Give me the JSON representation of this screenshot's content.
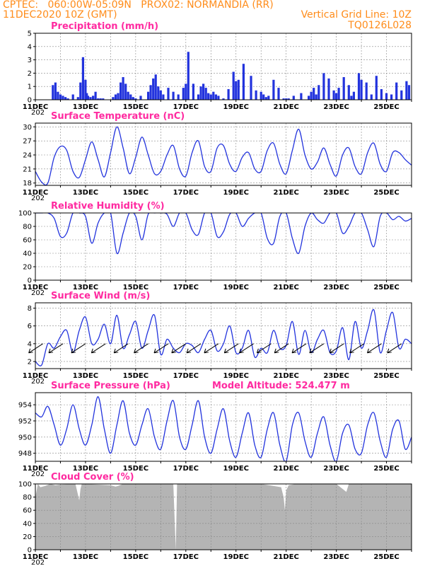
{
  "header": {
    "line1_left": "CPTEC:   060:00W-05:09N   PROX02: NORMANDIA (RR)",
    "line2_left": "11DEC2020 10Z (GMT)",
    "line2_right": "Vertical Grid Line: 10Z",
    "line3_right": "TQ0126L028"
  },
  "colors": {
    "header": "#ff8c1a",
    "title": "#ff2aa0",
    "series": "#2233dd",
    "cloud": "#b4b4b4",
    "grid": "#888888"
  },
  "x_tick_labels": [
    "11DEC",
    "13DEC",
    "15DEC",
    "17DEC",
    "19DEC",
    "21DEC",
    "23DEC",
    "25DEC"
  ],
  "x_tick_sub": "202",
  "chart_data": [
    {
      "id": "precip",
      "type": "bar",
      "title": "Precipitation (mm/h)",
      "ylim": [
        0,
        5
      ],
      "yticks": [
        "0",
        "1",
        "2",
        "3",
        "4",
        "5"
      ],
      "x_days": [
        0,
        15
      ],
      "grid": true,
      "series": [
        {
          "values_note": "",
          "t": [
            0.7,
            0.8,
            0.9,
            1.0,
            1.1,
            1.2,
            1.3,
            1.5,
            1.7,
            1.8,
            1.9,
            2.0,
            2.05,
            2.1,
            2.2,
            2.3,
            2.4,
            2.5,
            2.6,
            2.7,
            3.1,
            3.2,
            3.3,
            3.4,
            3.5,
            3.6,
            3.7,
            3.8,
            3.9,
            4.0,
            4.2,
            4.5,
            4.6,
            4.7,
            4.8,
            4.9,
            5.0,
            5.1,
            5.3,
            5.5,
            5.7,
            5.9,
            6.0,
            6.1,
            6.3,
            6.5,
            6.6,
            6.7,
            6.8,
            6.9,
            7.0,
            7.1,
            7.2,
            7.3,
            7.5,
            7.7,
            7.9,
            8.0,
            8.1,
            8.3,
            8.6,
            8.8,
            9.0,
            9.1,
            9.2,
            9.3,
            9.5,
            9.7,
            9.9,
            10.0,
            10.1,
            10.3,
            10.6,
            10.9,
            11.0,
            11.1,
            11.2,
            11.3,
            11.5,
            11.7,
            11.9,
            12.0,
            12.1,
            12.3,
            12.5,
            12.6,
            12.7,
            12.9,
            13.0,
            13.2,
            13.4,
            13.6,
            13.8,
            14.0,
            14.2,
            14.4,
            14.6,
            14.8,
            14.9
          ],
          "values": [
            1.1,
            1.3,
            0.6,
            0.4,
            0.3,
            0.2,
            0.1,
            0.4,
            0.2,
            1.3,
            3.2,
            1.5,
            0.5,
            0.3,
            0.2,
            0.3,
            0.6,
            0.1,
            0.1,
            0.1,
            0.2,
            0.4,
            0.5,
            1.3,
            1.7,
            1.2,
            0.6,
            0.4,
            0.2,
            0.1,
            0.3,
            0.6,
            1.1,
            1.6,
            1.9,
            1.0,
            0.7,
            0.4,
            0.9,
            0.6,
            0.4,
            0.9,
            1.2,
            3.6,
            1.2,
            0.4,
            1.0,
            1.2,
            0.9,
            0.5,
            0.4,
            0.6,
            0.4,
            0.3,
            0.1,
            0.8,
            2.1,
            1.4,
            1.5,
            2.7,
            1.8,
            0.7,
            0.6,
            0.4,
            0.2,
            0.3,
            1.5,
            0.9,
            0.1,
            0.1,
            0.1,
            0.3,
            0.5,
            0.3,
            0.6,
            0.9,
            0.4,
            1.1,
            2.0,
            1.6,
            0.7,
            0.5,
            0.9,
            1.7,
            1.1,
            0.3,
            0.6,
            2.0,
            1.5,
            1.3,
            0.4,
            1.8,
            0.8,
            0.5,
            0.4,
            1.3,
            0.7,
            1.4,
            1.1
          ]
        }
      ]
    },
    {
      "id": "temp",
      "type": "line",
      "title": "Surface Temperature (nC)",
      "ylim": [
        17.5,
        30.8
      ],
      "yticks": [
        "18",
        "21",
        "24",
        "27",
        "30"
      ],
      "ytick_values": [
        18,
        21,
        24,
        27,
        30
      ],
      "series": [
        {
          "t": [
            0.0,
            0.25,
            0.5,
            0.75,
            1.0,
            1.25,
            1.5,
            1.75,
            2.0,
            2.25,
            2.5,
            2.75,
            3.0,
            3.25,
            3.5,
            3.75,
            4.0,
            4.25,
            4.5,
            4.75,
            5.0,
            5.25,
            5.5,
            5.75,
            6.0,
            6.25,
            6.5,
            6.75,
            7.0,
            7.25,
            7.5,
            7.75,
            8.0,
            8.25,
            8.5,
            8.75,
            9.0,
            9.25,
            9.5,
            9.75,
            10.0,
            10.25,
            10.5,
            10.75,
            11.0,
            11.25,
            11.5,
            11.75,
            12.0,
            12.25,
            12.5,
            12.75,
            13.0,
            13.25,
            13.5,
            13.75,
            14.0,
            14.25,
            14.5,
            14.75,
            15.0
          ],
          "values": [
            20.5,
            18.2,
            18.0,
            23.5,
            25.8,
            25.0,
            20.5,
            19.2,
            23.0,
            26.8,
            23.0,
            19.3,
            24.5,
            30.0,
            25.5,
            20.0,
            23.5,
            27.8,
            24.0,
            20.0,
            20.5,
            24.0,
            26.0,
            21.0,
            19.5,
            24.5,
            27.0,
            21.5,
            20.5,
            25.5,
            26.0,
            22.0,
            20.5,
            23.5,
            24.5,
            21.0,
            20.5,
            25.0,
            26.5,
            22.0,
            20.0,
            25.0,
            29.5,
            24.0,
            21.0,
            22.5,
            25.5,
            22.0,
            19.5,
            24.0,
            25.5,
            21.5,
            20.0,
            24.5,
            26.5,
            22.0,
            20.5,
            24.5,
            24.5,
            23.0,
            21.8
          ]
        }
      ]
    },
    {
      "id": "rh",
      "type": "line",
      "title": "Relative Humidity (%)",
      "ylim": [
        0,
        100
      ],
      "yticks": [
        "0",
        "20",
        "40",
        "60",
        "80",
        "100"
      ],
      "ytick_values": [
        0,
        20,
        40,
        60,
        80,
        100
      ],
      "series": [
        {
          "t": [
            0.0,
            0.25,
            0.5,
            0.75,
            1.0,
            1.25,
            1.5,
            1.75,
            2.0,
            2.25,
            2.5,
            2.75,
            3.0,
            3.25,
            3.5,
            3.75,
            4.0,
            4.25,
            4.5,
            4.75,
            5.0,
            5.25,
            5.5,
            5.75,
            6.0,
            6.25,
            6.5,
            6.75,
            7.0,
            7.25,
            7.5,
            7.75,
            8.0,
            8.25,
            8.5,
            8.75,
            9.0,
            9.25,
            9.5,
            9.75,
            10.0,
            10.25,
            10.5,
            10.75,
            11.0,
            11.25,
            11.5,
            11.75,
            12.0,
            12.25,
            12.5,
            12.75,
            13.0,
            13.25,
            13.5,
            13.75,
            14.0,
            14.25,
            14.5,
            14.75,
            15.0
          ],
          "values": [
            100,
            100,
            100,
            92,
            65,
            70,
            100,
            100,
            95,
            55,
            85,
            100,
            100,
            40,
            70,
            100,
            95,
            60,
            98,
            100,
            100,
            98,
            80,
            100,
            100,
            75,
            68,
            100,
            100,
            65,
            72,
            98,
            100,
            80,
            92,
            100,
            100,
            62,
            55,
            95,
            100,
            62,
            40,
            80,
            100,
            90,
            85,
            100,
            100,
            70,
            80,
            100,
            100,
            75,
            50,
            95,
            100,
            90,
            95,
            88,
            92
          ]
        }
      ]
    },
    {
      "id": "wind",
      "type": "line",
      "title": "Surface Wind (m/s)",
      "ylim": [
        1.2,
        8.6
      ],
      "yticks": [
        "2",
        "4",
        "6",
        "8"
      ],
      "ytick_values": [
        2,
        4,
        6,
        8
      ],
      "series": [
        {
          "t": [
            0.0,
            0.25,
            0.5,
            0.75,
            1.0,
            1.25,
            1.5,
            1.75,
            2.0,
            2.25,
            2.5,
            2.75,
            3.0,
            3.25,
            3.5,
            3.75,
            4.0,
            4.25,
            4.5,
            4.75,
            5.0,
            5.25,
            5.5,
            5.75,
            6.0,
            6.25,
            6.5,
            6.75,
            7.0,
            7.25,
            7.5,
            7.75,
            8.0,
            8.25,
            8.5,
            8.75,
            9.0,
            9.25,
            9.5,
            9.75,
            10.0,
            10.25,
            10.5,
            10.75,
            11.0,
            11.25,
            11.5,
            11.75,
            12.0,
            12.25,
            12.5,
            12.75,
            13.0,
            13.25,
            13.5,
            13.75,
            14.0,
            14.25,
            14.5,
            14.75,
            15.0
          ],
          "values": [
            2.0,
            1.6,
            4.0,
            3.5,
            4.8,
            5.5,
            3.0,
            5.5,
            7.0,
            4.0,
            4.5,
            6.2,
            4.0,
            7.2,
            3.5,
            5.0,
            6.5,
            3.5,
            5.5,
            7.2,
            2.8,
            4.5,
            3.5,
            3.0,
            4.0,
            3.8,
            3.0,
            4.5,
            5.5,
            3.2,
            4.0,
            6.0,
            3.0,
            3.5,
            5.5,
            2.5,
            3.5,
            3.0,
            5.5,
            3.5,
            3.8,
            6.5,
            2.8,
            5.5,
            3.0,
            4.5,
            5.5,
            3.0,
            3.2,
            5.8,
            2.2,
            6.5,
            3.5,
            5.5,
            7.8,
            3.0,
            5.5,
            7.5,
            3.5,
            4.5,
            4.0
          ]
        }
      ],
      "arrows_t": [
        0.3,
        1.1,
        2.0,
        2.8,
        3.7,
        4.5,
        5.3,
        6.0,
        6.6,
        7.3,
        8.1,
        8.7,
        9.4,
        10.1,
        10.8,
        11.5,
        12.3,
        13.1,
        13.8,
        14.6
      ]
    },
    {
      "id": "press",
      "type": "line",
      "title": "Surface Pressure (hPa)",
      "annotation": "Model Altitude: 524.477  m",
      "ylim": [
        947.0,
        955.5
      ],
      "yticks": [
        "948",
        "950",
        "952",
        "954"
      ],
      "ytick_values": [
        948,
        950,
        952,
        954
      ],
      "series": [
        {
          "t": [
            0.0,
            0.25,
            0.5,
            0.75,
            1.0,
            1.25,
            1.5,
            1.75,
            2.0,
            2.25,
            2.5,
            2.75,
            3.0,
            3.25,
            3.5,
            3.75,
            4.0,
            4.25,
            4.5,
            4.75,
            5.0,
            5.25,
            5.5,
            5.75,
            6.0,
            6.25,
            6.5,
            6.75,
            7.0,
            7.25,
            7.5,
            7.75,
            8.0,
            8.25,
            8.5,
            8.75,
            9.0,
            9.25,
            9.5,
            9.75,
            10.0,
            10.25,
            10.5,
            10.75,
            11.0,
            11.25,
            11.5,
            11.75,
            12.0,
            12.25,
            12.5,
            12.75,
            13.0,
            13.25,
            13.5,
            13.75,
            14.0,
            14.25,
            14.5,
            14.75,
            15.0
          ],
          "values": [
            953.0,
            952.5,
            953.8,
            951.5,
            949.0,
            951.0,
            954.0,
            951.0,
            949.0,
            951.5,
            955.0,
            951.0,
            948.0,
            951.5,
            954.5,
            950.5,
            949.0,
            951.5,
            953.5,
            950.0,
            948.5,
            952.0,
            954.5,
            950.0,
            948.5,
            951.5,
            954.5,
            950.0,
            948.0,
            951.0,
            953.5,
            949.5,
            947.5,
            950.5,
            953.0,
            949.0,
            947.5,
            951.0,
            953.0,
            949.0,
            947.0,
            951.5,
            953.0,
            949.5,
            947.5,
            950.5,
            952.5,
            949.0,
            947.0,
            950.5,
            951.5,
            948.5,
            948.0,
            951.5,
            953.0,
            949.5,
            947.5,
            951.0,
            952.0,
            948.5,
            950.0
          ]
        }
      ]
    },
    {
      "id": "cloud",
      "type": "area",
      "title": "Cloud Cover (%)",
      "ylim": [
        0,
        100
      ],
      "yticks": [
        "0",
        "20",
        "40",
        "60",
        "80",
        "100"
      ],
      "ytick_values": [
        0,
        20,
        40,
        60,
        80,
        100
      ],
      "series": [
        {
          "t": [
            0.0,
            0.05,
            0.1,
            0.2,
            0.4,
            0.6,
            0.8,
            1.0,
            1.6,
            1.75,
            1.8,
            1.85,
            2.0,
            3.0,
            3.2,
            3.3,
            3.5,
            4.0,
            5.0,
            5.5,
            5.6,
            5.65,
            5.7,
            6.0,
            7.0,
            8.0,
            9.0,
            9.8,
            9.9,
            9.95,
            10.0,
            10.1,
            10.4,
            11.0,
            12.0,
            12.4,
            12.5,
            13.0,
            14.0,
            15.0
          ],
          "values": [
            80,
            90,
            100,
            95,
            97,
            100,
            98,
            99,
            100,
            75,
            92,
            100,
            100,
            98,
            96,
            97,
            100,
            100,
            100,
            100,
            0,
            100,
            100,
            100,
            100,
            100,
            100,
            95,
            80,
            60,
            90,
            98,
            100,
            100,
            100,
            88,
            100,
            100,
            100,
            100
          ]
        }
      ]
    }
  ]
}
